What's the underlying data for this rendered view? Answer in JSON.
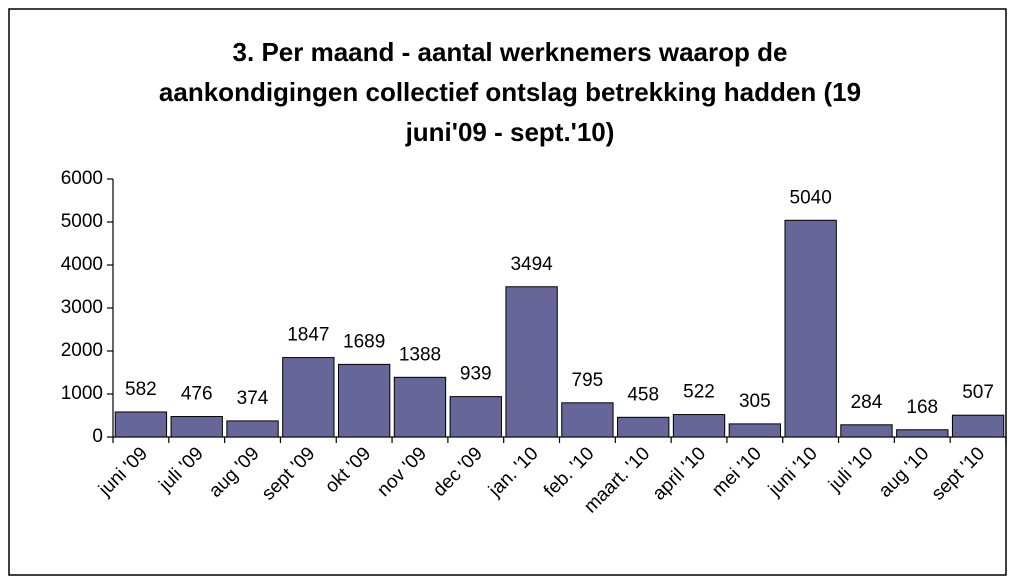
{
  "chart_data": {
    "type": "bar",
    "title": "3. Per maand - aantal werknemers waarop de aankondigingen collectief ontslag betrekking hadden (19 juni'09 - sept.'10)",
    "categories": [
      "juni '09",
      "juli '09",
      "aug '09",
      "sept '09",
      "okt '09",
      "nov '09",
      "dec '09",
      "jan. '10",
      "feb. '10",
      "maart. '10",
      "april '10",
      "mei '10",
      "juni '10",
      "juli '10",
      "aug '10",
      "sept '10"
    ],
    "values": [
      582,
      476,
      374,
      1847,
      1689,
      1388,
      939,
      3494,
      795,
      458,
      522,
      305,
      5040,
      284,
      168,
      507
    ],
    "color": "#666699",
    "ylim": [
      0,
      6000
    ],
    "yticks": [
      0,
      1000,
      2000,
      3000,
      4000,
      5000,
      6000
    ],
    "grid": false
  }
}
